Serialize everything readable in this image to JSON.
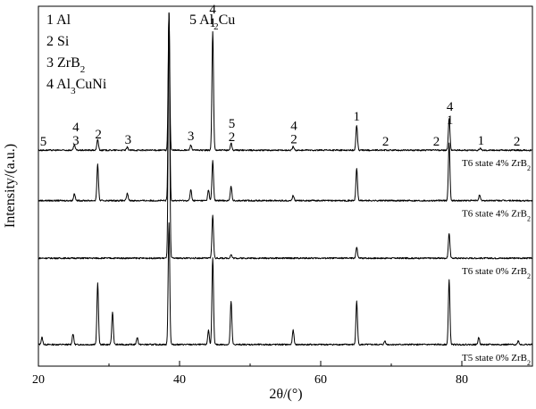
{
  "chart_data": {
    "type": "line",
    "title": "",
    "xlabel": "2θ/(°)",
    "ylabel": "Intensity/(a.u.)",
    "xlim": [
      20,
      90
    ],
    "x_ticks": [
      20,
      40,
      60,
      80
    ],
    "y_ticks": "none",
    "grid": false,
    "legend": {
      "placement": "top-left",
      "entries": [
        {
          "num": "1",
          "name": "Al"
        },
        {
          "num": "2",
          "name": "Si"
        },
        {
          "num": "3",
          "name": "ZrB",
          "sub": "2"
        },
        {
          "num": "4",
          "name": "Al",
          "sub": "3",
          "tail": "CuNi"
        },
        {
          "num": "5",
          "name": "Al",
          "sub": "2",
          "tail": "Cu"
        }
      ]
    },
    "series": [
      {
        "label": {
          "pre": "T5 state 0% ZrB",
          "sub": "2"
        },
        "baseline": 0.06,
        "peaks": [
          {
            "x": 20.5,
            "h": 0.02
          },
          {
            "x": 24.9,
            "h": 0.03
          },
          {
            "x": 28.4,
            "h": 0.17
          },
          {
            "x": 30.5,
            "h": 0.09
          },
          {
            "x": 34.0,
            "h": 0.02
          },
          {
            "x": 38.5,
            "h": 0.34
          },
          {
            "x": 44.1,
            "h": 0.04
          },
          {
            "x": 44.7,
            "h": 0.24
          },
          {
            "x": 47.3,
            "h": 0.12
          },
          {
            "x": 56.1,
            "h": 0.04
          },
          {
            "x": 65.1,
            "h": 0.12
          },
          {
            "x": 69.1,
            "h": 0.01
          },
          {
            "x": 78.2,
            "h": 0.18
          },
          {
            "x": 82.4,
            "h": 0.02
          },
          {
            "x": 88.0,
            "h": 0.01
          }
        ]
      },
      {
        "label": {
          "pre": "T6 state 0% ZrB",
          "sub": "2"
        },
        "baseline": 0.3,
        "peaks": [
          {
            "x": 38.5,
            "h": 0.68
          },
          {
            "x": 44.7,
            "h": 0.12
          },
          {
            "x": 47.3,
            "h": 0.01
          },
          {
            "x": 65.1,
            "h": 0.03
          },
          {
            "x": 78.2,
            "h": 0.07
          }
        ]
      },
      {
        "label": {
          "pre": "T6 state 4% ZrB",
          "sub": "2"
        },
        "baseline": 0.46,
        "peaks": [
          {
            "x": 25.1,
            "h": 0.02
          },
          {
            "x": 28.4,
            "h": 0.1
          },
          {
            "x": 32.6,
            "h": 0.02
          },
          {
            "x": 38.5,
            "h": 0.52
          },
          {
            "x": 41.6,
            "h": 0.03
          },
          {
            "x": 44.1,
            "h": 0.03
          },
          {
            "x": 44.7,
            "h": 0.11
          },
          {
            "x": 47.3,
            "h": 0.04
          },
          {
            "x": 56.1,
            "h": 0.015
          },
          {
            "x": 65.1,
            "h": 0.09
          },
          {
            "x": 78.2,
            "h": 0.16
          },
          {
            "x": 82.5,
            "h": 0.015
          }
        ]
      },
      {
        "label": {
          "pre": "T6 state 4% ZrB",
          "sub": "2"
        },
        "baseline": 0.6,
        "peaks": [
          {
            "x": 25.1,
            "h": 0.015
          },
          {
            "x": 28.4,
            "h": 0.03
          },
          {
            "x": 32.6,
            "h": 0.008
          },
          {
            "x": 38.5,
            "h": 0.38
          },
          {
            "x": 41.6,
            "h": 0.015
          },
          {
            "x": 44.7,
            "h": 0.33
          },
          {
            "x": 47.3,
            "h": 0.02
          },
          {
            "x": 56.1,
            "h": 0.01
          },
          {
            "x": 65.1,
            "h": 0.07
          },
          {
            "x": 78.2,
            "h": 0.09
          },
          {
            "x": 82.6,
            "h": 0.005
          }
        ]
      }
    ],
    "peak_markers": [
      {
        "x": 20.7,
        "lines": [
          "5"
        ]
      },
      {
        "x": 25.3,
        "lines": [
          "4",
          "3"
        ]
      },
      {
        "x": 28.5,
        "lines": [
          "2"
        ]
      },
      {
        "x": 32.7,
        "lines": [
          "3"
        ]
      },
      {
        "x": 41.6,
        "lines": [
          "3"
        ]
      },
      {
        "x": 44.7,
        "lines": [
          "4",
          "1"
        ]
      },
      {
        "x": 47.4,
        "lines": [
          "5",
          "2"
        ]
      },
      {
        "x": 56.2,
        "lines": [
          "4",
          "2"
        ]
      },
      {
        "x": 65.1,
        "lines": [
          "1"
        ]
      },
      {
        "x": 69.2,
        "lines": [
          "2"
        ]
      },
      {
        "x": 76.4,
        "lines": [
          "2"
        ]
      },
      {
        "x": 78.3,
        "lines": [
          "4",
          "1"
        ]
      },
      {
        "x": 82.7,
        "lines": [
          "1"
        ]
      },
      {
        "x": 87.8,
        "lines": [
          "2"
        ]
      }
    ]
  }
}
